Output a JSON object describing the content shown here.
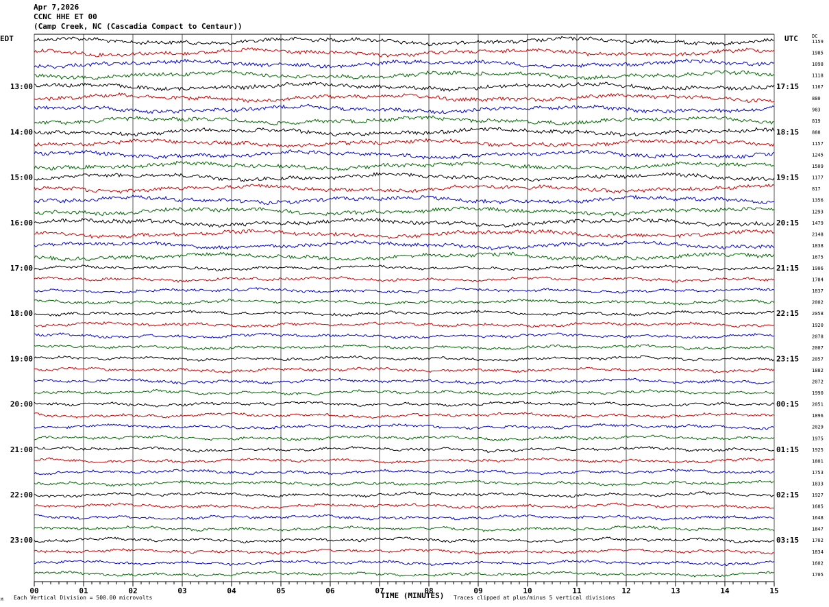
{
  "header": {
    "date": "Apr 7,2026",
    "channel": "CCNC HHE ET 00",
    "station": "(Camp Creek, NC (Cascadia Compact to Centaur))"
  },
  "labels": {
    "left_tz": "EDT",
    "right_tz": "UTC",
    "dc_header": "DC",
    "xlabel": "TIME (MINUTES)",
    "footer_left": "Each Vertical Division =  500.00 microvolts",
    "footer_right": "Traces clipped at plus/minus 5 vertical divisions",
    "corner_mark": "M"
  },
  "colors": {
    "trace_cycle": [
      "#000000",
      "#cc0000",
      "#0000cc",
      "#006600"
    ],
    "grid": "#000000",
    "background": "#ffffff"
  },
  "chart_data": {
    "type": "line",
    "description_kind": "helicorder",
    "minutes_per_line": 15,
    "x_ticks": [
      "00",
      "01",
      "02",
      "03",
      "04",
      "05",
      "06",
      "07",
      "08",
      "09",
      "10",
      "11",
      "12",
      "13",
      "14",
      "15"
    ],
    "xlim": [
      0,
      15
    ],
    "left_hour_labels": [
      "13:00",
      "14:00",
      "15:00",
      "16:00",
      "17:00",
      "18:00",
      "19:00",
      "20:00",
      "21:00",
      "22:00",
      "23:00"
    ],
    "right_hour_labels": [
      "17:15",
      "18:15",
      "19:15",
      "20:15",
      "21:15",
      "22:15",
      "23:15",
      "00:15",
      "01:15",
      "02:15",
      "03:15"
    ],
    "dc_offsets": [
      "1159",
      "1985",
      "1098",
      "1118",
      "1167",
      "880",
      "983",
      "819",
      "888",
      "1157",
      "1245",
      "1509",
      "1177",
      "817",
      "1356",
      "1293",
      "1479",
      "2148",
      "1838",
      "1675",
      "1906",
      "1784",
      "1837",
      "2002",
      "2058",
      "1920",
      "2078",
      "2007",
      "2057",
      "1882",
      "2072",
      "1990",
      "2051",
      "1896",
      "2029",
      "1975",
      "1925",
      "1801",
      "1753",
      "1833",
      "1927",
      "1685",
      "1648",
      "1847",
      "1702",
      "1834",
      "1602",
      "1705"
    ],
    "trace_count": 48,
    "clip_divisions": 5,
    "microvolts_per_division": 500.0
  }
}
